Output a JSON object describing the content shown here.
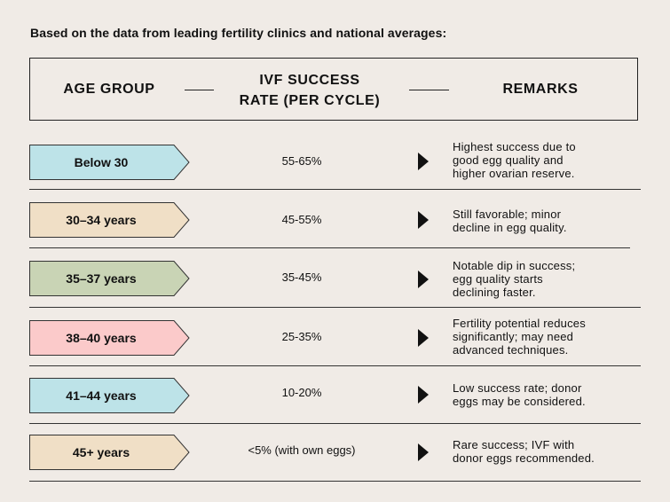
{
  "intro": "Based on the data from leading fertility clinics and national averages:",
  "header": {
    "age_group": "AGE GROUP",
    "rate_line1": "IVF SUCCESS",
    "rate_line2": "RATE (PER CYCLE)",
    "remarks": "REMARKS"
  },
  "rows": [
    {
      "age": "Below 30",
      "rate": "55-65%",
      "color": "#bde3e8",
      "remark": [
        "Highest success due to",
        "good egg quality and",
        "higher ovarian reserve."
      ]
    },
    {
      "age": "30–34 years",
      "rate": "45-55%",
      "color": "#f0dfc6",
      "remark": [
        "Still favorable; minor",
        "decline in egg quality."
      ]
    },
    {
      "age": "35–37 years",
      "rate": "35-45%",
      "color": "#c9d4b5",
      "remark": [
        "Notable dip in success;",
        "egg quality starts",
        "declining faster."
      ]
    },
    {
      "age": "38–40 years",
      "rate": "25-35%",
      "color": "#fbcaca",
      "remark": [
        "Fertility potential reduces",
        "significantly; may need",
        "advanced techniques."
      ]
    },
    {
      "age": "41–44 years",
      "rate": "10-20%",
      "color": "#bde3e8",
      "remark": [
        "Low success rate; donor",
        "eggs may be considered."
      ]
    },
    {
      "age": "45+ years",
      "rate": "<5% (with own eggs)",
      "color": "#f0dfc6",
      "remark": [
        "Rare success; IVF with",
        "donor eggs recommended."
      ]
    }
  ]
}
